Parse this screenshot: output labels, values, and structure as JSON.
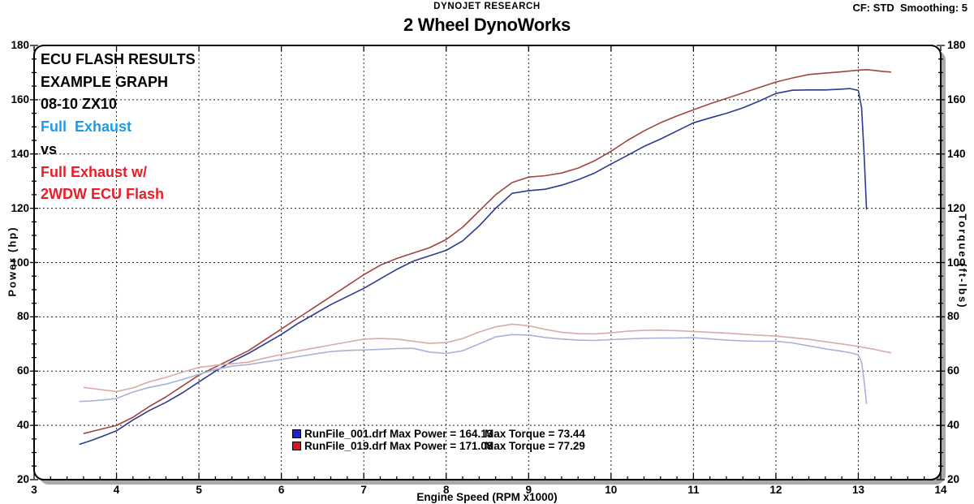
{
  "header": {
    "company": "DYNOJET RESEARCH",
    "title": "2 Wheel DynoWorks",
    "settings": "CF: STD  Smoothing: 5"
  },
  "annotations": [
    {
      "text": "ECU FLASH RESULTS",
      "color": "#000000"
    },
    {
      "text": "EXAMPLE GRAPH",
      "color": "#000000"
    },
    {
      "text": "08-10 ZX10",
      "color": "#000000"
    },
    {
      "text": "Full  Exhaust",
      "color": "#1e9be8"
    },
    {
      "text": "vs",
      "color": "#000000"
    },
    {
      "text": "Full Exhaust w/",
      "color": "#ea1c28"
    },
    {
      "text": "2WDW ECU Flash",
      "color": "#ea1c28"
    }
  ],
  "legend": [
    {
      "marker_color": "#2222cc",
      "run_label": "RunFile_001.drf Max Power = 164.13",
      "torque_label": "Max Torque = 73.44"
    },
    {
      "marker_color": "#dd1616",
      "run_label": "RunFile_019.drf Max Power = 171.08",
      "torque_label": "Max Torque = 77.29"
    }
  ],
  "axes": {
    "x": {
      "label": "Engine Speed (RPM x1000)",
      "min": 3,
      "max": 14,
      "ticks": [
        3,
        4,
        5,
        6,
        7,
        8,
        9,
        10,
        11,
        12,
        13,
        14
      ],
      "minor_step": 0.2
    },
    "y_left": {
      "label": "Power (hp)",
      "min": 20,
      "max": 180,
      "ticks": [
        20,
        40,
        60,
        80,
        100,
        120,
        140,
        160,
        180
      ],
      "minor_step": 5
    },
    "y_right": {
      "label": "Torque (ft-lbs)",
      "min": 20,
      "max": 180,
      "ticks": [
        20,
        40,
        60,
        80,
        100,
        120,
        140,
        160,
        180
      ],
      "minor_step": 5
    }
  },
  "colors": {
    "grid": "#222222",
    "border": "#000000",
    "shadow": "#a9a9a9"
  },
  "chart_data": {
    "type": "line",
    "title": "2 Wheel DynoWorks",
    "xlabel": "Engine Speed (RPM x1000)",
    "ylabel_left": "Power (hp)",
    "ylabel_right": "Torque (ft-lbs)",
    "xlim": [
      3,
      14
    ],
    "ylim": [
      20,
      180
    ],
    "grid": true,
    "legend_position": "bottom-center",
    "series": [
      {
        "id": "power-run1",
        "name": "RunFile_001.drf Power (hp)",
        "color": "#2c3a90",
        "max": 164.13,
        "points": [
          [
            3.55,
            33
          ],
          [
            3.7,
            34.5
          ],
          [
            3.85,
            36.2
          ],
          [
            4.0,
            38
          ],
          [
            4.2,
            42
          ],
          [
            4.4,
            45.5
          ],
          [
            4.6,
            48.5
          ],
          [
            4.8,
            52
          ],
          [
            5.0,
            56
          ],
          [
            5.2,
            60
          ],
          [
            5.4,
            63.5
          ],
          [
            5.6,
            66.5
          ],
          [
            5.8,
            70
          ],
          [
            6.0,
            73.5
          ],
          [
            6.2,
            77.5
          ],
          [
            6.4,
            81
          ],
          [
            6.6,
            84.5
          ],
          [
            6.8,
            87.5
          ],
          [
            7.0,
            90.5
          ],
          [
            7.2,
            94
          ],
          [
            7.4,
            97.5
          ],
          [
            7.6,
            100.5
          ],
          [
            7.8,
            102.5
          ],
          [
            8.0,
            104.5
          ],
          [
            8.2,
            108
          ],
          [
            8.4,
            113.5
          ],
          [
            8.6,
            120
          ],
          [
            8.8,
            125.5
          ],
          [
            9.0,
            126.5
          ],
          [
            9.2,
            127
          ],
          [
            9.4,
            128.5
          ],
          [
            9.6,
            130.5
          ],
          [
            9.8,
            133
          ],
          [
            10.0,
            136.3
          ],
          [
            10.2,
            139.5
          ],
          [
            10.4,
            142.8
          ],
          [
            10.6,
            145.5
          ],
          [
            10.8,
            148.5
          ],
          [
            11.0,
            151.5
          ],
          [
            11.2,
            153.3
          ],
          [
            11.4,
            155
          ],
          [
            11.6,
            157
          ],
          [
            11.8,
            159.5
          ],
          [
            12.0,
            162.3
          ],
          [
            12.2,
            163.5
          ],
          [
            12.4,
            163.6
          ],
          [
            12.6,
            163.6
          ],
          [
            12.8,
            163.9
          ],
          [
            12.9,
            164.13
          ],
          [
            13.0,
            163.4
          ],
          [
            13.04,
            157
          ],
          [
            13.07,
            140
          ],
          [
            13.1,
            119.5
          ]
        ]
      },
      {
        "id": "power-run2",
        "name": "RunFile_019.drf Power (hp)",
        "color": "#a04540",
        "max": 171.08,
        "points": [
          [
            3.6,
            37
          ],
          [
            3.8,
            38.5
          ],
          [
            4.0,
            40
          ],
          [
            4.2,
            43
          ],
          [
            4.4,
            47
          ],
          [
            4.6,
            50.5
          ],
          [
            4.8,
            54.5
          ],
          [
            5.0,
            58.5
          ],
          [
            5.2,
            61.5
          ],
          [
            5.4,
            64.5
          ],
          [
            5.6,
            67.5
          ],
          [
            5.8,
            71.5
          ],
          [
            6.0,
            75.5
          ],
          [
            6.2,
            79.5
          ],
          [
            6.4,
            83.5
          ],
          [
            6.6,
            87.5
          ],
          [
            6.8,
            91.5
          ],
          [
            7.0,
            95.5
          ],
          [
            7.2,
            99
          ],
          [
            7.4,
            101.5
          ],
          [
            7.6,
            103.5
          ],
          [
            7.8,
            105.5
          ],
          [
            8.0,
            108.5
          ],
          [
            8.2,
            113
          ],
          [
            8.4,
            119
          ],
          [
            8.6,
            125
          ],
          [
            8.8,
            129.5
          ],
          [
            9.0,
            131.5
          ],
          [
            9.2,
            132
          ],
          [
            9.4,
            133
          ],
          [
            9.6,
            134.8
          ],
          [
            9.8,
            137.5
          ],
          [
            10.0,
            141
          ],
          [
            10.2,
            145
          ],
          [
            10.4,
            148.5
          ],
          [
            10.6,
            151.5
          ],
          [
            10.8,
            154
          ],
          [
            11.0,
            156.3
          ],
          [
            11.2,
            158.5
          ],
          [
            11.4,
            160.5
          ],
          [
            11.6,
            162.5
          ],
          [
            11.8,
            164.5
          ],
          [
            12.0,
            166.5
          ],
          [
            12.2,
            168
          ],
          [
            12.4,
            169.3
          ],
          [
            12.6,
            169.8
          ],
          [
            12.8,
            170.3
          ],
          [
            13.0,
            170.9
          ],
          [
            13.1,
            171.08
          ],
          [
            13.2,
            170.8
          ],
          [
            13.3,
            170.4
          ],
          [
            13.4,
            170.2
          ]
        ]
      },
      {
        "id": "torque-run1",
        "name": "RunFile_001.drf Torque (ft-lbs)",
        "color": "#a9b1d8",
        "max": 73.44,
        "points": [
          [
            3.55,
            48.8
          ],
          [
            3.7,
            49.0
          ],
          [
            3.85,
            49.4
          ],
          [
            4.0,
            49.9
          ],
          [
            4.2,
            52.3
          ],
          [
            4.4,
            54.0
          ],
          [
            4.6,
            55.2
          ],
          [
            4.8,
            56.9
          ],
          [
            5.0,
            58.8
          ],
          [
            5.2,
            60.6
          ],
          [
            5.4,
            61.8
          ],
          [
            5.6,
            62.4
          ],
          [
            5.8,
            63.4
          ],
          [
            6.0,
            64.3
          ],
          [
            6.2,
            65.3
          ],
          [
            6.4,
            66.3
          ],
          [
            6.6,
            67.2
          ],
          [
            6.8,
            67.6
          ],
          [
            7.0,
            67.8
          ],
          [
            7.2,
            68.0
          ],
          [
            7.4,
            68.3
          ],
          [
            7.6,
            68.4
          ],
          [
            7.8,
            67.0
          ],
          [
            8.0,
            66.5
          ],
          [
            8.2,
            67.5
          ],
          [
            8.4,
            70.0
          ],
          [
            8.6,
            72.6
          ],
          [
            8.8,
            73.44
          ],
          [
            9.0,
            73.3
          ],
          [
            9.2,
            72.4
          ],
          [
            9.4,
            71.8
          ],
          [
            9.6,
            71.4
          ],
          [
            9.8,
            71.3
          ],
          [
            10.0,
            71.6
          ],
          [
            10.2,
            71.9
          ],
          [
            10.4,
            72.1
          ],
          [
            10.6,
            72.2
          ],
          [
            10.8,
            72.2
          ],
          [
            11.0,
            72.3
          ],
          [
            11.2,
            71.9
          ],
          [
            11.4,
            71.4
          ],
          [
            11.6,
            71.1
          ],
          [
            11.8,
            71.0
          ],
          [
            12.0,
            71.0
          ],
          [
            12.2,
            70.4
          ],
          [
            12.4,
            69.3
          ],
          [
            12.6,
            68.2
          ],
          [
            12.8,
            67.3
          ],
          [
            12.9,
            66.8
          ],
          [
            13.0,
            66.0
          ],
          [
            13.04,
            63.3
          ],
          [
            13.07,
            56.5
          ],
          [
            13.1,
            47.9
          ]
        ]
      },
      {
        "id": "torque-run2",
        "name": "RunFile_019.drf Torque (ft-lbs)",
        "color": "#d9aba7",
        "max": 77.29,
        "points": [
          [
            3.6,
            54.0
          ],
          [
            3.8,
            53.2
          ],
          [
            4.0,
            52.5
          ],
          [
            4.2,
            53.8
          ],
          [
            4.4,
            56.1
          ],
          [
            4.6,
            57.7
          ],
          [
            4.8,
            59.6
          ],
          [
            5.0,
            61.4
          ],
          [
            5.2,
            62.1
          ],
          [
            5.4,
            62.7
          ],
          [
            5.6,
            63.3
          ],
          [
            5.8,
            64.8
          ],
          [
            6.0,
            66.1
          ],
          [
            6.2,
            67.4
          ],
          [
            6.4,
            68.5
          ],
          [
            6.6,
            69.6
          ],
          [
            6.8,
            70.7
          ],
          [
            7.0,
            71.8
          ],
          [
            7.2,
            72.0
          ],
          [
            7.4,
            71.8
          ],
          [
            7.6,
            71.0
          ],
          [
            7.8,
            70.2
          ],
          [
            8.0,
            70.5
          ],
          [
            8.2,
            72.0
          ],
          [
            8.4,
            74.4
          ],
          [
            8.6,
            76.3
          ],
          [
            8.8,
            77.29
          ],
          [
            9.0,
            76.7
          ],
          [
            9.2,
            75.4
          ],
          [
            9.4,
            74.3
          ],
          [
            9.6,
            73.8
          ],
          [
            9.8,
            73.7
          ],
          [
            10.0,
            74.1
          ],
          [
            10.2,
            74.7
          ],
          [
            10.4,
            75.0
          ],
          [
            10.6,
            75.1
          ],
          [
            10.8,
            74.9
          ],
          [
            11.0,
            74.6
          ],
          [
            11.2,
            74.3
          ],
          [
            11.4,
            74.0
          ],
          [
            11.6,
            73.6
          ],
          [
            11.8,
            73.2
          ],
          [
            12.0,
            72.9
          ],
          [
            12.2,
            72.3
          ],
          [
            12.4,
            71.7
          ],
          [
            12.6,
            70.8
          ],
          [
            12.8,
            70.0
          ],
          [
            13.0,
            69.1
          ],
          [
            13.1,
            68.5
          ],
          [
            13.2,
            68.0
          ],
          [
            13.3,
            67.3
          ],
          [
            13.4,
            66.7
          ]
        ]
      }
    ]
  }
}
